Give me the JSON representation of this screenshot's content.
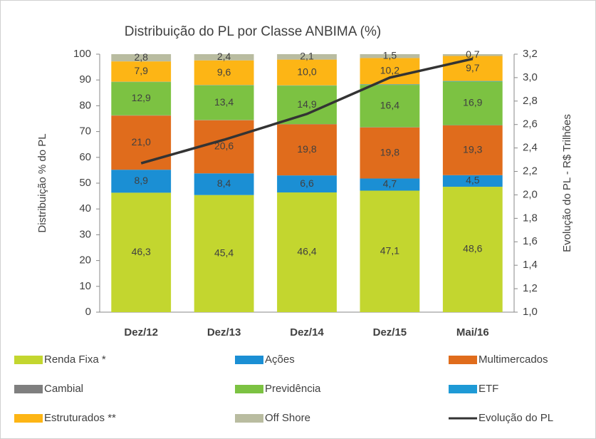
{
  "chart_data": {
    "type": "bar",
    "stacked": true,
    "title": "Distribuição do PL por Classe ANBIMA (%)",
    "y_label": "Distribuição % do PL",
    "y2_label": "Evolução do PL - R$ Trilhões",
    "categories": [
      "Dez/12",
      "Dez/13",
      "Dez/14",
      "Dez/15",
      "Mai/16"
    ],
    "ylim": [
      0,
      100
    ],
    "yticks": [
      0,
      10,
      20,
      30,
      40,
      50,
      60,
      70,
      80,
      90,
      100
    ],
    "y2lim": [
      1.0,
      3.2
    ],
    "y2ticks": [
      {
        "value": 1.0,
        "label": "1,0"
      },
      {
        "value": 1.2,
        "label": "1,2"
      },
      {
        "value": 1.4,
        "label": "1,4"
      },
      {
        "value": 1.6,
        "label": "1,6"
      },
      {
        "value": 1.8,
        "label": "1,8"
      },
      {
        "value": 2.0,
        "label": "2,0"
      },
      {
        "value": 2.2,
        "label": "2,2"
      },
      {
        "value": 2.4,
        "label": "2,4"
      },
      {
        "value": 2.6,
        "label": "2,6"
      },
      {
        "value": 2.8,
        "label": "2,8"
      },
      {
        "value": 3.0,
        "label": "3,0"
      },
      {
        "value": 3.2,
        "label": "3,2"
      }
    ],
    "legend": "bottom",
    "series": [
      {
        "name": "Renda Fixa *",
        "color": "#c3d62f",
        "values": [
          46.3,
          45.4,
          46.4,
          47.1,
          48.6
        ],
        "value_labels": [
          "46,3",
          "45,4",
          "46,4",
          "47,1",
          "48,6"
        ]
      },
      {
        "name": "Ações",
        "color": "#1b8fd4",
        "values": [
          8.9,
          8.4,
          6.6,
          4.7,
          4.5
        ],
        "value_labels": [
          "8,9",
          "8,4",
          "6,6",
          "4,7",
          "4,5"
        ]
      },
      {
        "name": "Multimercados",
        "color": "#e06c1c",
        "values": [
          21.0,
          20.6,
          19.8,
          19.8,
          19.3
        ],
        "value_labels": [
          "21,0",
          "20,6",
          "19,8",
          "19,8",
          "19,3"
        ]
      },
      {
        "name": "Cambial",
        "color": "#7f7f7f",
        "values": [
          0.1,
          0.1,
          0.1,
          0.1,
          0.1
        ]
      },
      {
        "name": "Previdência",
        "color": "#7cc242",
        "values": [
          12.9,
          13.4,
          14.9,
          16.4,
          16.9
        ],
        "value_labels": [
          "12,9",
          "13,4",
          "14,9",
          "16,4",
          "16,9"
        ]
      },
      {
        "name": "ETF",
        "color": "#1e9ad6",
        "values": [
          0.1,
          0.1,
          0.1,
          0.2,
          0.2
        ]
      },
      {
        "name": "Estruturados **",
        "color": "#fdb515",
        "values": [
          7.9,
          9.6,
          10.0,
          10.2,
          9.7
        ],
        "value_labels": [
          "7,9",
          "9,6",
          "10,0",
          "10,2",
          "9,7"
        ]
      },
      {
        "name": "Off Shore",
        "color": "#b9bca0",
        "values": [
          2.8,
          2.4,
          2.1,
          1.5,
          0.7
        ],
        "value_labels": [
          "2,8",
          "2,4",
          "2,1",
          "1,5",
          "0,7"
        ]
      },
      {
        "name": "Evolução do PL",
        "type": "line",
        "axis": "y2",
        "color": "#333333",
        "values": [
          2.27,
          2.47,
          2.69,
          3.0,
          3.16
        ]
      }
    ]
  }
}
